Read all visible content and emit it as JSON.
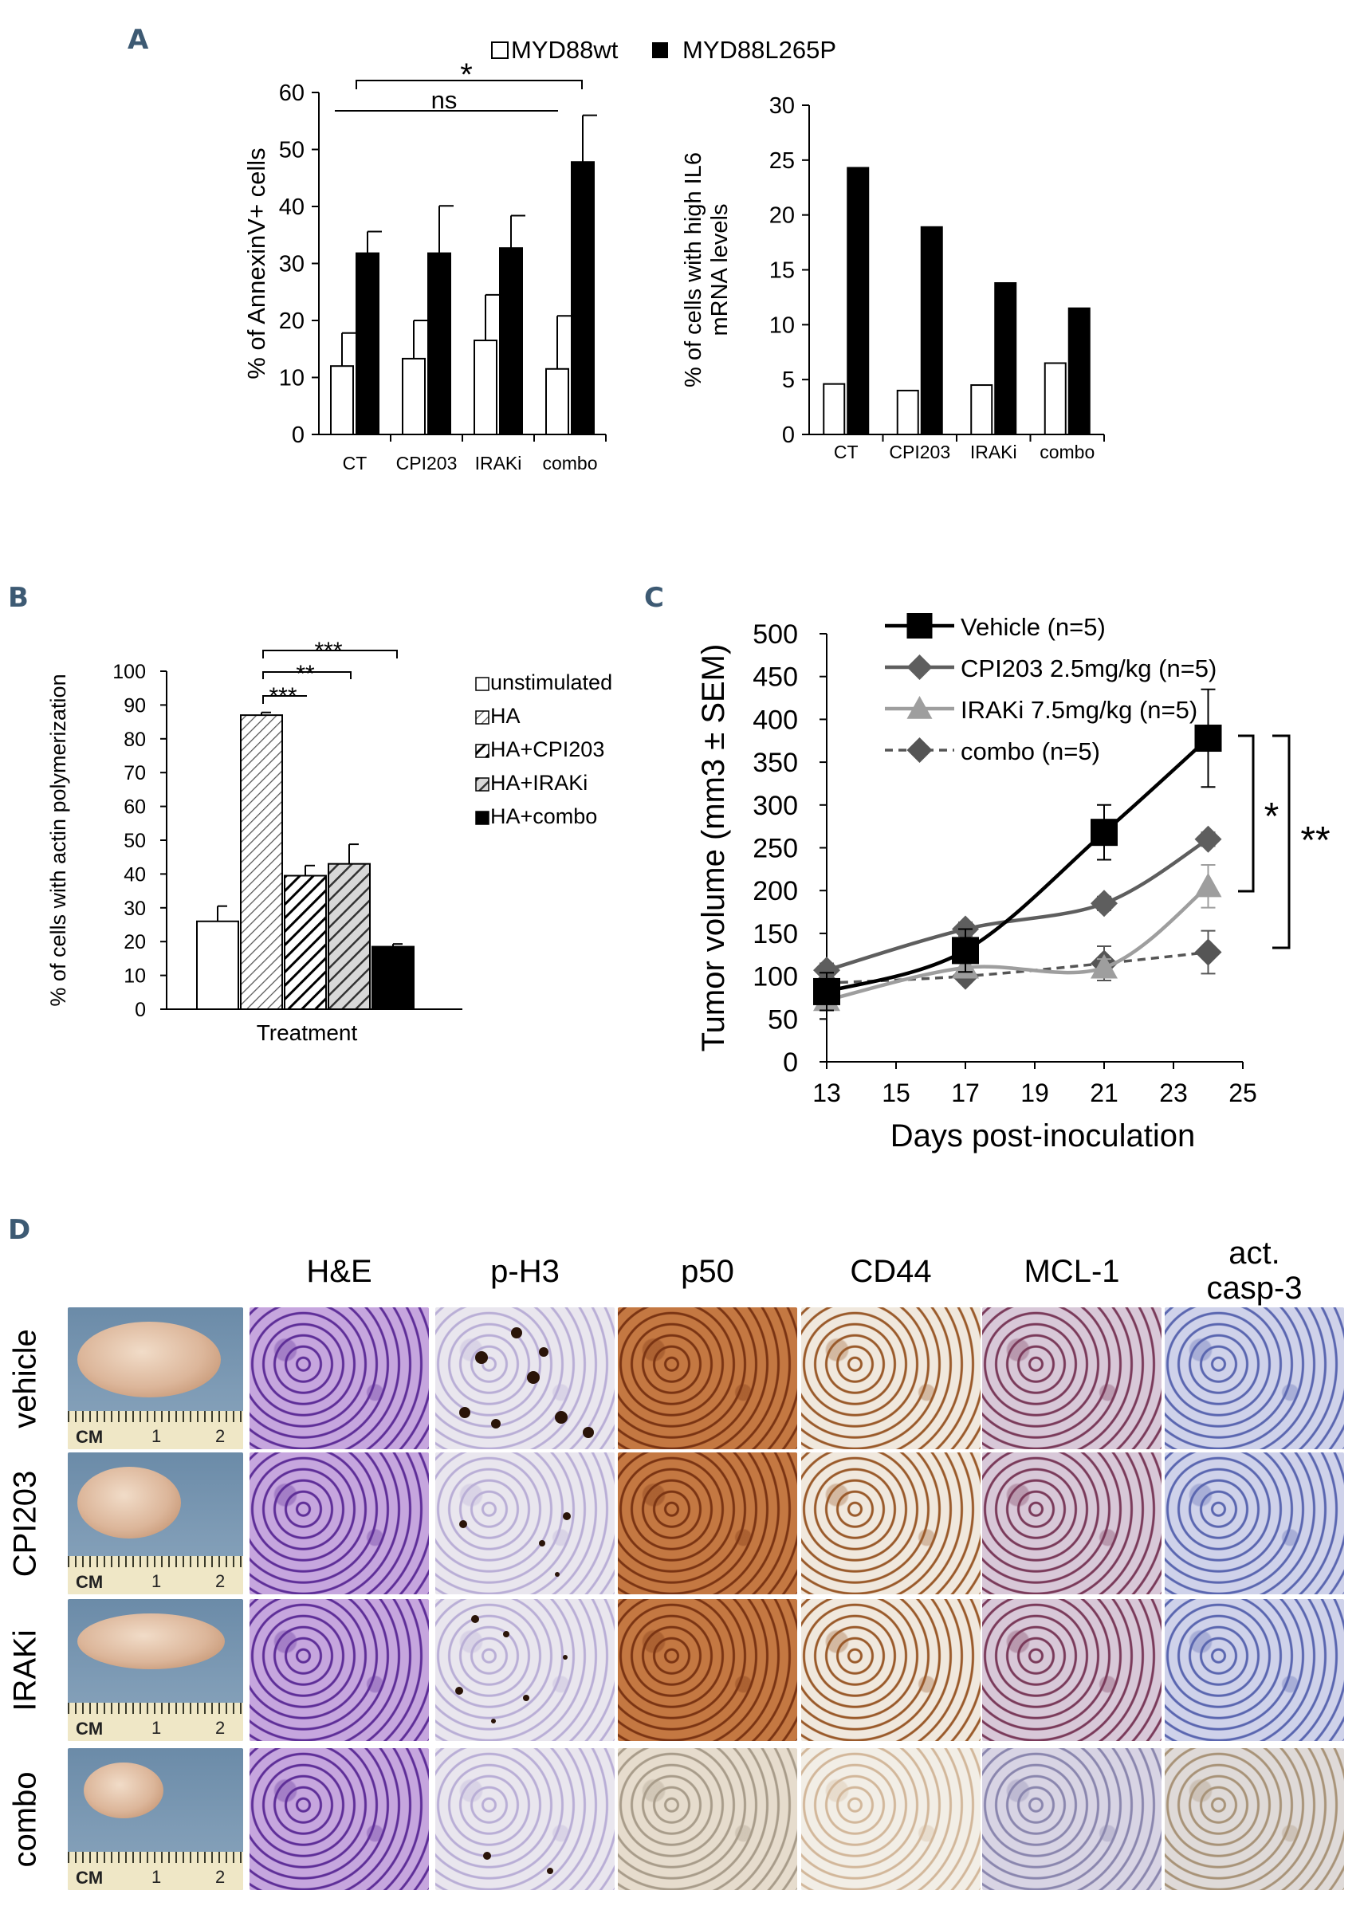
{
  "panels": {
    "a": "A",
    "b": "B",
    "c": "C",
    "d": "D"
  },
  "chart_data": [
    {
      "id": "A-left",
      "type": "bar",
      "categories": [
        "CT",
        "CPI203",
        "IRAKi",
        "combo"
      ],
      "ylabel": "% of AnnexinV+ cells",
      "ylim": [
        0,
        60
      ],
      "yticks": [
        "0",
        "10",
        "20",
        "30",
        "40",
        "50",
        "60"
      ],
      "series": [
        {
          "name": "MYD88wt",
          "values": [
            12,
            13.3,
            16.5,
            11.5
          ],
          "errors": [
            5.8,
            6.7,
            8,
            9.3
          ],
          "color": "#ffffff"
        },
        {
          "name": "MYD88L265P",
          "values": [
            31.8,
            31.8,
            32.7,
            47.8
          ],
          "errors": [
            3.8,
            8.3,
            5.7,
            8.2
          ],
          "color": "#000000"
        }
      ],
      "annotations": [
        {
          "text": "ns"
        },
        {
          "text": "*"
        }
      ]
    },
    {
      "id": "A-right",
      "type": "bar",
      "categories": [
        "CT",
        "CPI203",
        "IRAKi",
        "combo"
      ],
      "ylabel": "% of cells with high IL6 mRNA levels",
      "ylabel_lines": [
        "% of cells with high IL6",
        "mRNA levels"
      ],
      "ylim": [
        0,
        30
      ],
      "yticks": [
        "0",
        "5",
        "10",
        "15",
        "20",
        "25",
        "30"
      ],
      "series": [
        {
          "name": "MYD88wt",
          "values": [
            4.6,
            4.0,
            4.5,
            6.5
          ],
          "color": "#ffffff"
        },
        {
          "name": "MYD88L265P",
          "values": [
            24.3,
            18.9,
            13.8,
            11.5
          ],
          "color": "#000000"
        }
      ]
    },
    {
      "id": "B",
      "type": "bar",
      "xlabel": "Treatment",
      "ylabel": "% of cells with actin polymerization",
      "ylim": [
        0,
        100
      ],
      "yticks": [
        "0",
        "10",
        "20",
        "30",
        "40",
        "50",
        "60",
        "70",
        "80",
        "90",
        "100"
      ],
      "series": [
        {
          "name": "unstimulated",
          "values": [
            26
          ],
          "errors": [
            4.5
          ],
          "fill": "white"
        },
        {
          "name": "HA",
          "values": [
            87
          ],
          "errors": [
            0.8
          ],
          "fill": "thin-diagonal"
        },
        {
          "name": "HA+CPI203",
          "values": [
            39.5
          ],
          "errors": [
            3
          ],
          "fill": "thick-diagonal"
        },
        {
          "name": "HA+IRAKi",
          "values": [
            43
          ],
          "errors": [
            5.8
          ],
          "fill": "grey-diagonal"
        },
        {
          "name": "HA+combo",
          "values": [
            18.5
          ],
          "errors": [
            0.8
          ],
          "fill": "black"
        }
      ],
      "annotations": [
        {
          "text": "***"
        },
        {
          "text": "**"
        },
        {
          "text": "***"
        }
      ]
    },
    {
      "id": "C",
      "type": "line",
      "xlabel": "Days post-inoculation",
      "ylabel": "Tumor volume (mm3 ± SEM)",
      "xlim": [
        13,
        25
      ],
      "ylim": [
        0,
        500
      ],
      "xticks": [
        "13",
        "15",
        "17",
        "19",
        "21",
        "23",
        "25"
      ],
      "yticks": [
        "0",
        "50",
        "100",
        "150",
        "200",
        "250",
        "300",
        "350",
        "400",
        "450",
        "500"
      ],
      "x": [
        13,
        17,
        21,
        24
      ],
      "series": [
        {
          "name": "Vehicle (n=5)",
          "values": [
            82,
            130,
            268,
            378
          ],
          "errors": [
            22,
            25,
            32,
            57
          ],
          "color": "#000000",
          "marker": "square"
        },
        {
          "name": "CPI203 2.5mg/kg (n=5)",
          "values": [
            107,
            155,
            185,
            260
          ],
          "errors": [
            8,
            8,
            8,
            8
          ],
          "color": "#5e5e5e",
          "marker": "diamond"
        },
        {
          "name": "IRAKi 7.5mg/kg (n=5)",
          "values": [
            72,
            110,
            110,
            205
          ],
          "errors": [
            5,
            5,
            10,
            25
          ],
          "color": "#9e9e9e",
          "marker": "triangle"
        },
        {
          "name": "combo (n=5)",
          "values": [
            92,
            100,
            115,
            128
          ],
          "errors": [
            6,
            6,
            20,
            25
          ],
          "color": "#555555",
          "marker": "diamond",
          "dashed": true
        }
      ],
      "annotations": [
        {
          "text": "*"
        },
        {
          "text": "**"
        }
      ]
    }
  ],
  "panelD": {
    "columns": [
      "H&E",
      "p-H3",
      "p50",
      "CD44",
      "MCL-1",
      "act.\ncasp-3"
    ],
    "rows": [
      "vehicle",
      "CPI203",
      "IRAKi",
      "combo"
    ],
    "ruler_label": "CM",
    "ruler_marks": [
      "1",
      "2"
    ]
  }
}
